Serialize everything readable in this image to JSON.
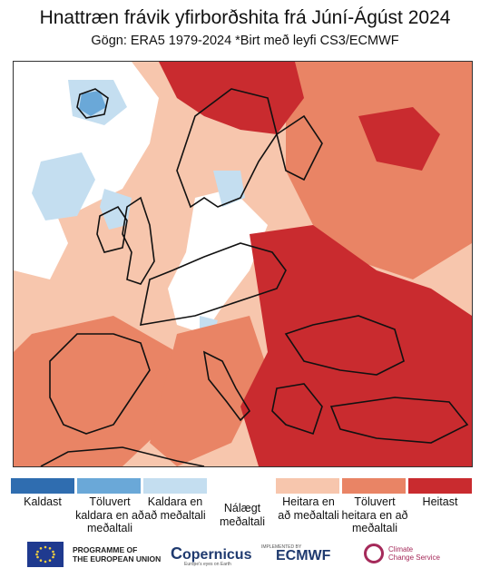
{
  "title": "Hnattræn frávik yfirborðshita frá Júní-Ágúst 2024",
  "subtitle": "Gögn: ERA5 1979-2024 *Birt með leyfi CS3/ECMWF",
  "legend": [
    {
      "label": "Kaldast",
      "color": "#2f6db0"
    },
    {
      "label": "Töluvert kaldara en að meðaltali",
      "color": "#6aa8d8"
    },
    {
      "label": "Kaldara en að meðaltali",
      "color": "#c4def0"
    },
    {
      "label": "Nálægt meðaltali",
      "color": "#ffffff"
    },
    {
      "label": "Heitara en að meðaltali",
      "color": "#f7c6ad"
    },
    {
      "label": "Töluvert heitara en að meðaltali",
      "color": "#e98465"
    },
    {
      "label": "Heitast",
      "color": "#c92b2f"
    }
  ],
  "footer": {
    "eu_line1": "PROGRAMME OF",
    "eu_line2": "THE EUROPEAN UNION",
    "copernicus": "opernicus",
    "copernicus_tagline": "Europe's eyes on Earth",
    "implemented_by": "IMPLEMENTED BY",
    "ecmwf": "ECMWF",
    "c3s_line1": "Climate",
    "c3s_line2": "Change Service"
  }
}
